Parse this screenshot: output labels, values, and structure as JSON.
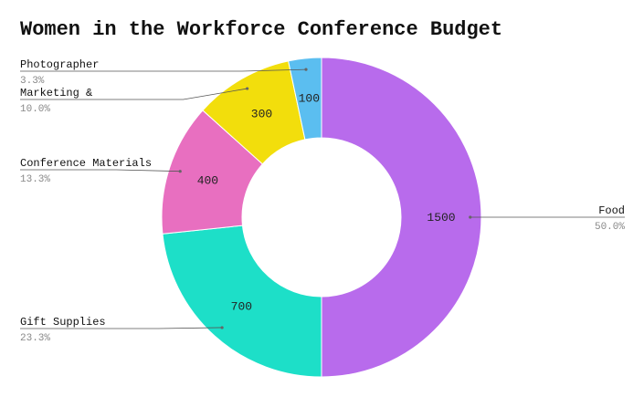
{
  "chart_data": {
    "type": "pie",
    "title": "Women in the Workforce Conference Budget",
    "categories": [
      "Food",
      "Gift Supplies",
      "Conference Materials",
      "Marketing &",
      "Photographer"
    ],
    "values": [
      1500,
      700,
      400,
      300,
      100
    ],
    "value_labels": [
      "1500",
      "700",
      "400",
      "300",
      "100"
    ],
    "percent_labels": [
      "50.0%",
      "23.3%",
      "13.3%",
      "10.0%",
      "3.3%"
    ],
    "colors": [
      "#b86bec",
      "#1ddfc8",
      "#e86fc0",
      "#f2de0c",
      "#5bbef0"
    ],
    "donut": true,
    "legend": "none"
  }
}
